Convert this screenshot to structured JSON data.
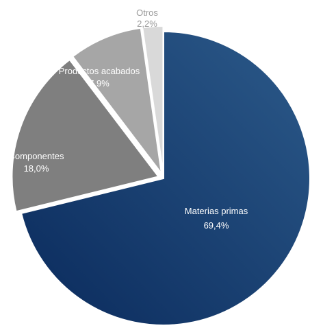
{
  "chart_data": {
    "type": "pie",
    "slices": [
      {
        "label": "Materias primas",
        "value": 69.4,
        "value_label": "69,4%",
        "color": "#1f3f6e",
        "exploded": false
      },
      {
        "label": "Componentes",
        "value": 18.0,
        "value_label": "18,0%",
        "color": "#7f7f7f",
        "exploded": true
      },
      {
        "label": "Productos acabados",
        "value": 7.9,
        "value_label": "7,9%",
        "color": "#a6a6a6",
        "exploded": true
      },
      {
        "label": "Otros",
        "value": 2.2,
        "value_label": "2,2%",
        "color": "#d9d9d9",
        "exploded": true
      }
    ],
    "colors": {
      "materias_gradient_start": "#0a2a5c",
      "materias_gradient_end": "#2c5a8a",
      "label_dark_slice": "#ffffff",
      "label_light_slice": "#ffffff",
      "label_otros": "#9a9a9a"
    },
    "legend": "none"
  }
}
